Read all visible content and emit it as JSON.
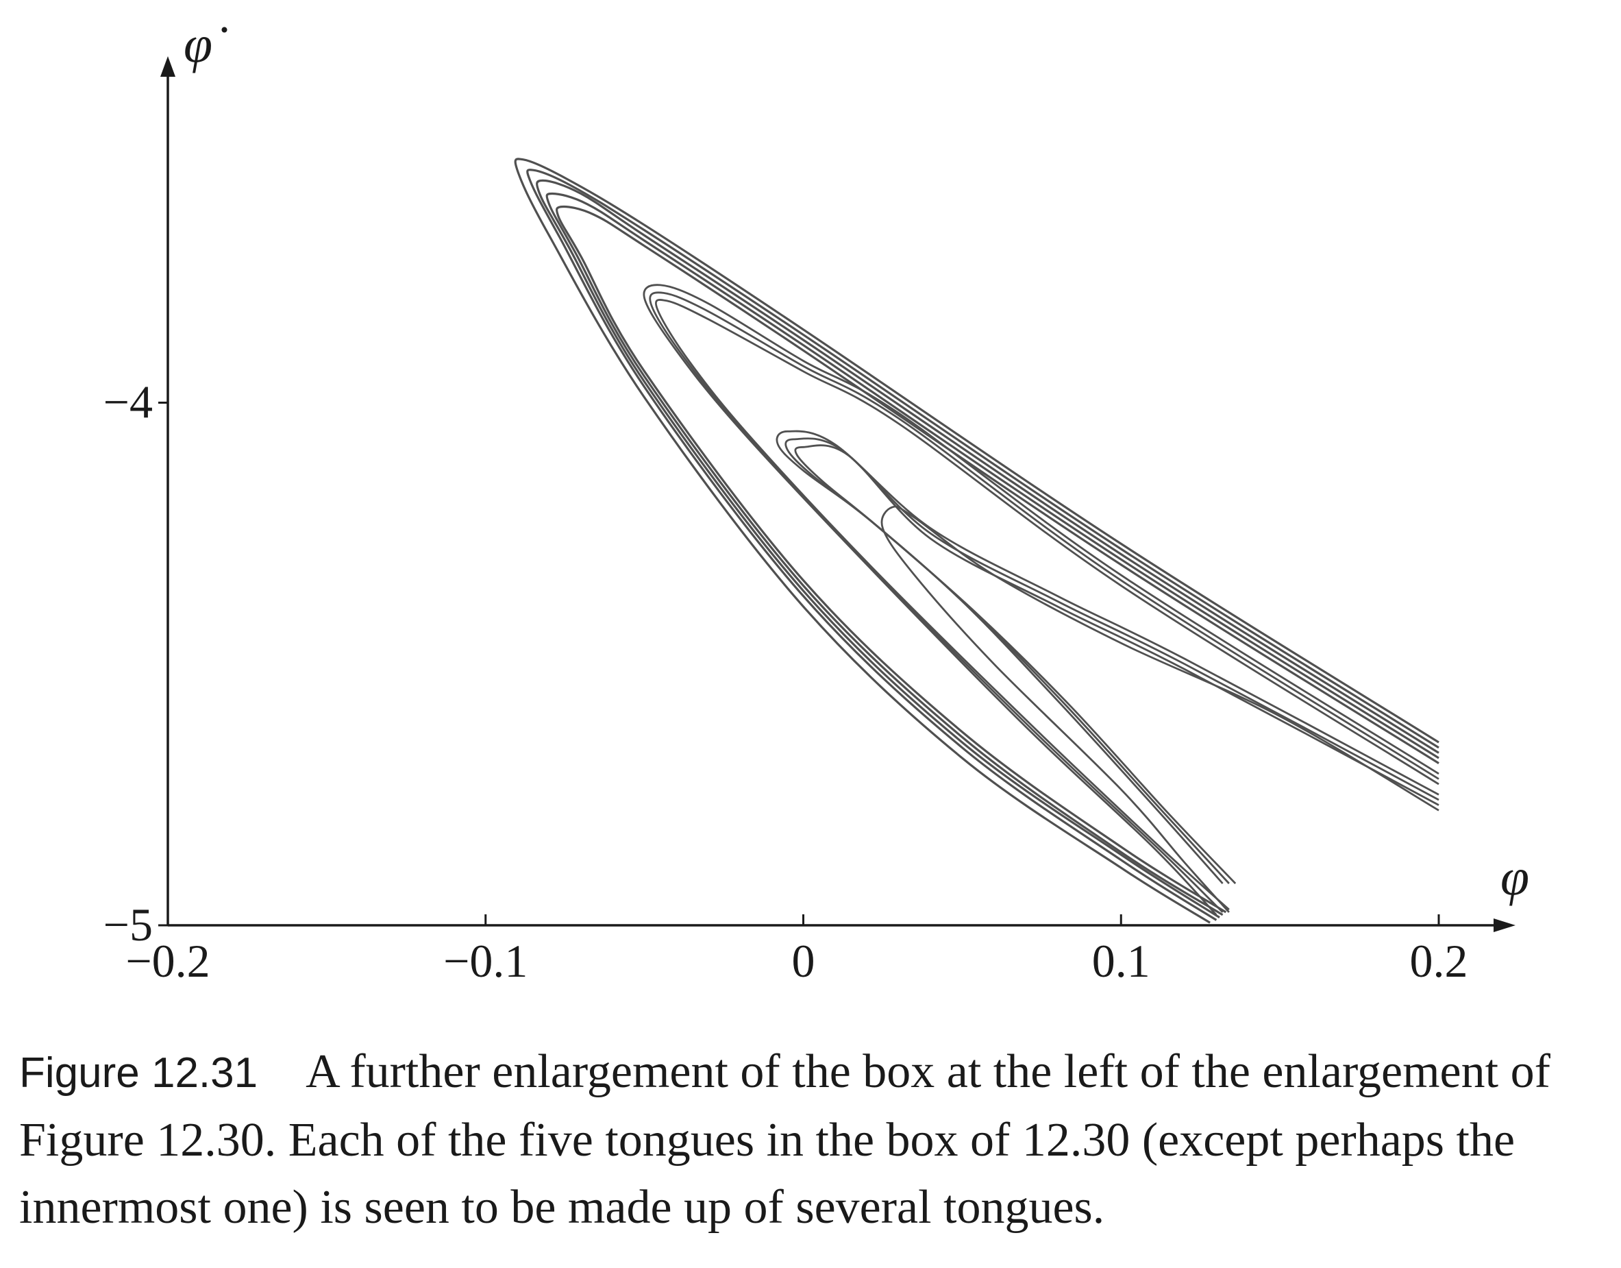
{
  "chart_data": {
    "type": "line",
    "title": "",
    "xlabel": "φ",
    "ylabel": "φ̇",
    "xlim": [
      -0.2,
      0.2
    ],
    "ylim": [
      -5,
      -3.4
    ],
    "x_ticks": [
      {
        "value": -0.2,
        "label": "−0.2"
      },
      {
        "value": -0.1,
        "label": "−0.1"
      },
      {
        "value": 0,
        "label": "0"
      },
      {
        "value": 0.1,
        "label": "0.1"
      },
      {
        "value": 0.2,
        "label": "0.2"
      }
    ],
    "y_ticks": [
      {
        "value": -4,
        "label": "−4"
      },
      {
        "value": -5,
        "label": "−5"
      }
    ],
    "grid": false,
    "colors": {
      "curve": "#505050",
      "axis": "#1a1a1a"
    },
    "series": [
      {
        "band": "outer",
        "points": [
          [
            0.2,
            -4.65
          ],
          [
            0.1,
            -4.27
          ],
          [
            0,
            -3.86
          ],
          [
            -0.05,
            -3.66
          ],
          [
            -0.075,
            -3.57
          ],
          [
            -0.088,
            -3.535
          ],
          [
            -0.09,
            -3.555
          ],
          [
            -0.08,
            -3.68
          ],
          [
            -0.05,
            -3.99
          ],
          [
            0,
            -4.39
          ],
          [
            0.05,
            -4.68
          ],
          [
            0.1,
            -4.89
          ],
          [
            0.128,
            -4.995
          ]
        ]
      },
      {
        "band": "outer",
        "points": [
          [
            0.2,
            -4.66
          ],
          [
            0.1,
            -4.28
          ],
          [
            0,
            -3.87
          ],
          [
            -0.05,
            -3.67
          ],
          [
            -0.073,
            -3.585
          ],
          [
            -0.085,
            -3.555
          ],
          [
            -0.086,
            -3.575
          ],
          [
            -0.077,
            -3.68
          ],
          [
            -0.05,
            -3.97
          ],
          [
            0,
            -4.37
          ],
          [
            0.05,
            -4.66
          ],
          [
            0.1,
            -4.875
          ],
          [
            0.13,
            -4.99
          ]
        ]
      },
      {
        "band": "outer",
        "points": [
          [
            0.2,
            -4.67
          ],
          [
            0.1,
            -4.29
          ],
          [
            0,
            -3.88
          ],
          [
            -0.05,
            -3.68
          ],
          [
            -0.07,
            -3.6
          ],
          [
            -0.082,
            -3.575
          ],
          [
            -0.083,
            -3.6
          ],
          [
            -0.074,
            -3.7
          ],
          [
            -0.05,
            -3.96
          ],
          [
            0,
            -4.36
          ],
          [
            0.05,
            -4.65
          ],
          [
            0.1,
            -4.865
          ],
          [
            0.131,
            -4.985
          ]
        ]
      },
      {
        "band": "outer",
        "points": [
          [
            0.2,
            -4.68
          ],
          [
            0.1,
            -4.3
          ],
          [
            0,
            -3.89
          ],
          [
            -0.05,
            -3.69
          ],
          [
            -0.068,
            -3.62
          ],
          [
            -0.079,
            -3.6
          ],
          [
            -0.08,
            -3.62
          ],
          [
            -0.072,
            -3.71
          ],
          [
            -0.05,
            -3.95
          ],
          [
            0,
            -4.35
          ],
          [
            0.05,
            -4.64
          ],
          [
            0.1,
            -4.86
          ],
          [
            0.132,
            -4.98
          ]
        ]
      },
      {
        "band": "outer",
        "points": [
          [
            0.2,
            -4.69
          ],
          [
            0.1,
            -4.31
          ],
          [
            0,
            -3.9
          ],
          [
            -0.05,
            -3.7
          ],
          [
            -0.066,
            -3.64
          ],
          [
            -0.076,
            -3.625
          ],
          [
            -0.077,
            -3.645
          ],
          [
            -0.07,
            -3.72
          ],
          [
            -0.05,
            -3.94
          ],
          [
            0,
            -4.34
          ],
          [
            0.05,
            -4.63
          ],
          [
            0.1,
            -4.85
          ],
          [
            0.133,
            -4.975
          ]
        ]
      },
      {
        "band": "second",
        "points": [
          [
            0.2,
            -4.71
          ],
          [
            0.1,
            -4.33
          ],
          [
            0.03,
            -4.02
          ],
          [
            0,
            -3.92
          ],
          [
            -0.03,
            -3.81
          ],
          [
            -0.045,
            -3.775
          ],
          [
            -0.05,
            -3.8
          ],
          [
            -0.04,
            -3.9
          ],
          [
            -0.02,
            -4.05
          ],
          [
            0.02,
            -4.31
          ],
          [
            0.07,
            -4.62
          ],
          [
            0.11,
            -4.85
          ],
          [
            0.13,
            -4.98
          ]
        ]
      },
      {
        "band": "second",
        "points": [
          [
            0.2,
            -4.72
          ],
          [
            0.1,
            -4.34
          ],
          [
            0.03,
            -4.03
          ],
          [
            0,
            -3.93
          ],
          [
            -0.03,
            -3.825
          ],
          [
            -0.044,
            -3.79
          ],
          [
            -0.048,
            -3.81
          ],
          [
            -0.038,
            -3.91
          ],
          [
            -0.018,
            -4.06
          ],
          [
            0.022,
            -4.32
          ],
          [
            0.072,
            -4.625
          ],
          [
            0.112,
            -4.855
          ],
          [
            0.132,
            -4.975
          ]
        ]
      },
      {
        "band": "second",
        "points": [
          [
            0.2,
            -4.73
          ],
          [
            0.1,
            -4.35
          ],
          [
            0.03,
            -4.04
          ],
          [
            0,
            -3.94
          ],
          [
            -0.03,
            -3.84
          ],
          [
            -0.043,
            -3.805
          ],
          [
            -0.046,
            -3.82
          ],
          [
            -0.036,
            -3.92
          ],
          [
            -0.016,
            -4.07
          ],
          [
            0.024,
            -4.33
          ],
          [
            0.074,
            -4.63
          ],
          [
            0.114,
            -4.86
          ],
          [
            0.134,
            -4.97
          ]
        ]
      },
      {
        "band": "third",
        "points": [
          [
            0.2,
            -4.75
          ],
          [
            0.12,
            -4.49
          ],
          [
            0.08,
            -4.37
          ],
          [
            0.04,
            -4.24
          ],
          [
            0.01,
            -4.08
          ],
          [
            -0.005,
            -4.055
          ],
          [
            -0.008,
            -4.08
          ],
          [
            0,
            -4.13
          ],
          [
            0.02,
            -4.22
          ],
          [
            0.05,
            -4.38
          ],
          [
            0.08,
            -4.57
          ],
          [
            0.11,
            -4.77
          ],
          [
            0.132,
            -4.92
          ]
        ]
      },
      {
        "band": "third",
        "points": [
          [
            0.2,
            -4.76
          ],
          [
            0.12,
            -4.5
          ],
          [
            0.08,
            -4.38
          ],
          [
            0.04,
            -4.25
          ],
          [
            0.012,
            -4.09
          ],
          [
            -0.003,
            -4.07
          ],
          [
            -0.005,
            -4.09
          ],
          [
            0.003,
            -4.14
          ],
          [
            0.022,
            -4.23
          ],
          [
            0.052,
            -4.39
          ],
          [
            0.082,
            -4.575
          ],
          [
            0.112,
            -4.775
          ],
          [
            0.134,
            -4.92
          ]
        ]
      },
      {
        "band": "third",
        "points": [
          [
            0.2,
            -4.77
          ],
          [
            0.12,
            -4.51
          ],
          [
            0.08,
            -4.39
          ],
          [
            0.04,
            -4.26
          ],
          [
            0.014,
            -4.1
          ],
          [
            0,
            -4.085
          ],
          [
            -0.002,
            -4.1
          ],
          [
            0.006,
            -4.15
          ],
          [
            0.024,
            -4.24
          ],
          [
            0.054,
            -4.4
          ],
          [
            0.084,
            -4.58
          ],
          [
            0.114,
            -4.78
          ],
          [
            0.136,
            -4.92
          ]
        ]
      },
      {
        "band": "innermost",
        "points": [
          [
            0.2,
            -4.78
          ],
          [
            0.15,
            -4.6
          ],
          [
            0.1,
            -4.46
          ],
          [
            0.06,
            -4.33
          ],
          [
            0.035,
            -4.22
          ],
          [
            0.028,
            -4.2
          ],
          [
            0.025,
            -4.24
          ],
          [
            0.035,
            -4.33
          ],
          [
            0.06,
            -4.5
          ],
          [
            0.1,
            -4.74
          ],
          [
            0.12,
            -4.88
          ],
          [
            0.134,
            -4.975
          ]
        ]
      }
    ]
  },
  "caption": {
    "figure_number": "Figure 12.31",
    "text": "A further enlargement of the box at the left of the enlargement of Figure 12.30. Each of the five tongues in the box of 12.30 (except perhaps the innermost one) is seen to be made up of several tongues."
  }
}
